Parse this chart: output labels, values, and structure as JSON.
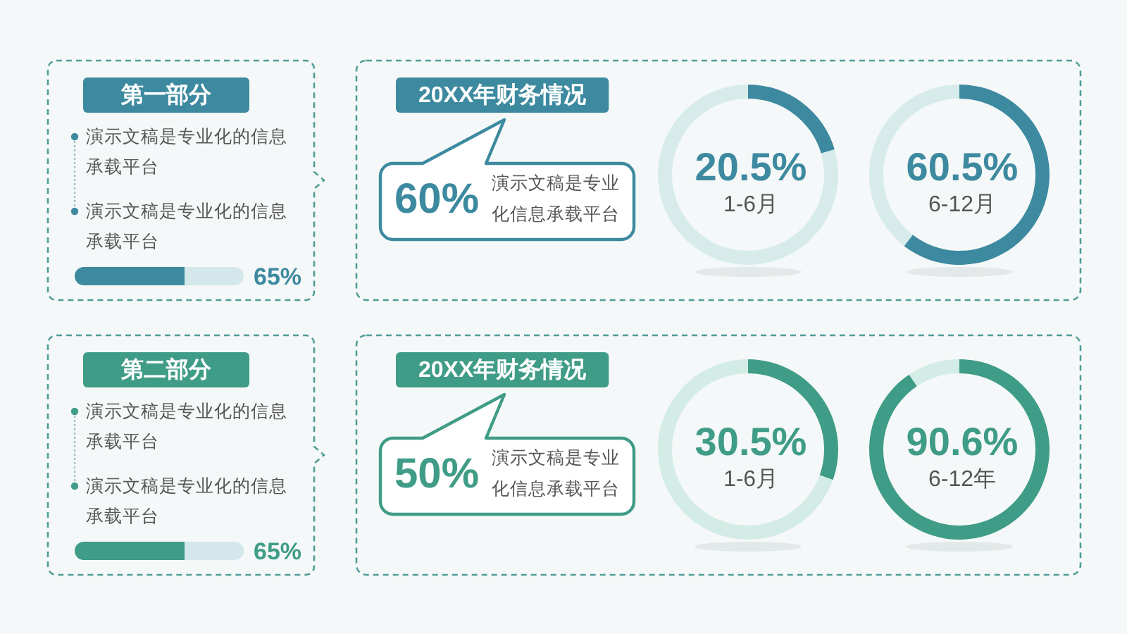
{
  "chart_data": [
    {
      "type": "bar",
      "orientation": "horizontal",
      "stacked": true,
      "title": "第一部分",
      "annotations": [
        "演示文稿是专业化的信息承载平台",
        "演示文稿是专业化的信息承载平台"
      ],
      "categories": [
        null
      ],
      "series": [
        {
          "color": "#3d8aa0",
          "values": [
            65
          ],
          "value_labels": [
            "65%"
          ]
        },
        {
          "color": "#d4e7ea",
          "values": [
            35
          ]
        }
      ]
    },
    {
      "type": "other",
      "title": "20XX年财务情况",
      "annotations": [
        "60%",
        "演示文稿是专业化信息承载平台"
      ]
    },
    {
      "type": "donut",
      "categories": [
        "1-6月",
        null
      ],
      "values": [
        20.5,
        79.5
      ],
      "colors": [
        "#3d8aa0",
        "#d7ecea"
      ],
      "value_labels": [
        "20.5%",
        null
      ]
    },
    {
      "type": "donut",
      "categories": [
        "6-12月",
        null
      ],
      "values": [
        60.5,
        39.5
      ],
      "colors": [
        "#3d8aa0",
        "#d7ecea"
      ],
      "value_labels": [
        "60.5%",
        null
      ]
    },
    {
      "type": "bar",
      "orientation": "horizontal",
      "stacked": true,
      "title": "第二部分",
      "annotations": [
        "演示文稿是专业化的信息承载平台",
        "演示文稿是专业化的信息承载平台"
      ],
      "categories": [
        null
      ],
      "series": [
        {
          "color": "#3f9c86",
          "values": [
            65
          ],
          "value_labels": [
            "65%"
          ]
        },
        {
          "color": "#d4e7ea",
          "values": [
            35
          ]
        }
      ]
    },
    {
      "type": "other",
      "title": "20XX年财务情况",
      "annotations": [
        "50%",
        "演示文稿是专业化信息承载平台"
      ]
    },
    {
      "type": "donut",
      "categories": [
        "1-6月",
        null
      ],
      "values": [
        30.5,
        69.5
      ],
      "colors": [
        "#3f9c86",
        "#d4ece6"
      ],
      "value_labels": [
        "30.5%",
        null
      ]
    },
    {
      "type": "donut",
      "categories": [
        "6-12年",
        null
      ],
      "values": [
        90.6,
        9.4
      ],
      "colors": [
        "#3f9c86",
        "#d4ece6"
      ],
      "value_labels": [
        "90.6%",
        null
      ]
    }
  ]
}
